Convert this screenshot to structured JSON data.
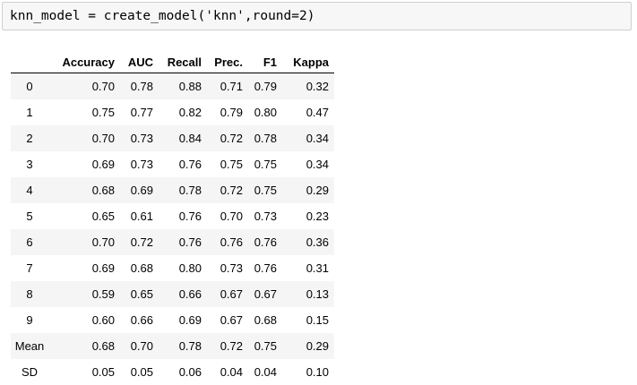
{
  "code_cell": {
    "source": "knn_model = create_model('knn',round=2)"
  },
  "table": {
    "index_header": "",
    "columns": [
      "Accuracy",
      "AUC",
      "Recall",
      "Prec.",
      "F1",
      "Kappa"
    ],
    "rows": [
      {
        "index": "0",
        "values": [
          "0.70",
          "0.78",
          "0.88",
          "0.71",
          "0.79",
          "0.32"
        ]
      },
      {
        "index": "1",
        "values": [
          "0.75",
          "0.77",
          "0.82",
          "0.79",
          "0.80",
          "0.47"
        ]
      },
      {
        "index": "2",
        "values": [
          "0.70",
          "0.73",
          "0.84",
          "0.72",
          "0.78",
          "0.34"
        ]
      },
      {
        "index": "3",
        "values": [
          "0.69",
          "0.73",
          "0.76",
          "0.75",
          "0.75",
          "0.34"
        ]
      },
      {
        "index": "4",
        "values": [
          "0.68",
          "0.69",
          "0.78",
          "0.72",
          "0.75",
          "0.29"
        ]
      },
      {
        "index": "5",
        "values": [
          "0.65",
          "0.61",
          "0.76",
          "0.70",
          "0.73",
          "0.23"
        ]
      },
      {
        "index": "6",
        "values": [
          "0.70",
          "0.72",
          "0.76",
          "0.76",
          "0.76",
          "0.36"
        ]
      },
      {
        "index": "7",
        "values": [
          "0.69",
          "0.68",
          "0.80",
          "0.73",
          "0.76",
          "0.31"
        ]
      },
      {
        "index": "8",
        "values": [
          "0.59",
          "0.65",
          "0.66",
          "0.67",
          "0.67",
          "0.13"
        ]
      },
      {
        "index": "9",
        "values": [
          "0.60",
          "0.66",
          "0.69",
          "0.67",
          "0.68",
          "0.15"
        ]
      },
      {
        "index": "Mean",
        "values": [
          "0.68",
          "0.70",
          "0.78",
          "0.72",
          "0.75",
          "0.29"
        ]
      },
      {
        "index": "SD",
        "values": [
          "0.05",
          "0.05",
          "0.06",
          "0.04",
          "0.04",
          "0.10"
        ]
      }
    ]
  },
  "colors": {
    "cell_background": "#f7f7f7",
    "cell_border": "#cfcfcf",
    "row_stripe": "#f5f5f5"
  }
}
